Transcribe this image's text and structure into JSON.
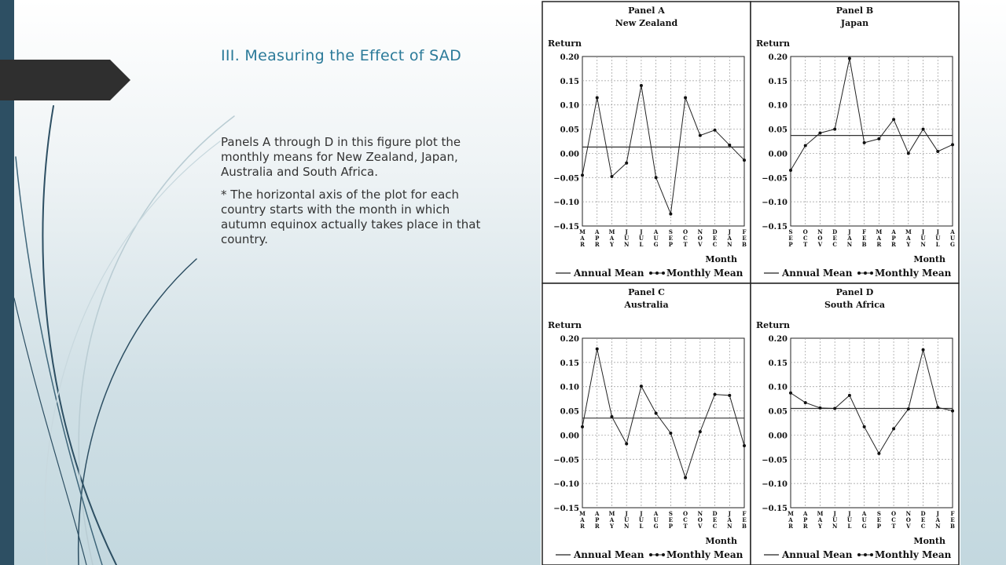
{
  "slide": {
    "title": "III. Measuring the Effect of SAD",
    "paragraphs": [
      "Panels A through D in this figure plot the monthly means for New Zealand, Japan, Australia and South Africa.",
      "* The horizontal axis of the plot for each country starts with the month in which autumn equinox actually takes place in that country."
    ]
  },
  "colors": {
    "accent_title": "#2b7a99",
    "left_bar": "#2d4f63",
    "tab": "#2f2f2f"
  },
  "chart_data": [
    {
      "type": "line",
      "panel_label": "Panel A",
      "country": "New Zealand",
      "ylabel": "Return",
      "xlabel": "Month",
      "ylim": [
        -0.15,
        0.2
      ],
      "yticks": [
        "0.20",
        "0.15",
        "0.10",
        "0.05",
        "0.00",
        "−0.05",
        "−0.10",
        "−0.15"
      ],
      "months": [
        "MAR",
        "APR",
        "MAY",
        "JUN",
        "JUL",
        "AUG",
        "SEP",
        "OCT",
        "NOV",
        "DEC",
        "JAN",
        "FEB"
      ],
      "annual_mean": 0.013,
      "values": [
        -0.045,
        0.115,
        -0.048,
        -0.02,
        0.14,
        -0.05,
        -0.125,
        0.115,
        0.037,
        0.048,
        0.017,
        -0.014
      ],
      "legend": [
        "Annual Mean",
        "Monthly Mean"
      ]
    },
    {
      "type": "line",
      "panel_label": "Panel B",
      "country": "Japan",
      "ylabel": "Return",
      "xlabel": "Month",
      "ylim": [
        -0.15,
        0.2
      ],
      "yticks": [
        "0.20",
        "0.15",
        "0.10",
        "0.05",
        "0.00",
        "−0.05",
        "−0.10",
        "−0.15"
      ],
      "months": [
        "SEP",
        "OCT",
        "NOV",
        "DEC",
        "JAN",
        "FEB",
        "MAR",
        "APR",
        "MAY",
        "JUN",
        "JUL",
        "AUG"
      ],
      "annual_mean": 0.037,
      "values": [
        -0.035,
        0.016,
        0.042,
        0.05,
        0.196,
        0.022,
        0.03,
        0.07,
        0.0,
        0.05,
        0.004,
        0.018
      ],
      "legend": [
        "Annual Mean",
        "Monthly Mean"
      ]
    },
    {
      "type": "line",
      "panel_label": "Panel C",
      "country": "Australia",
      "ylabel": "Return",
      "xlabel": "Month",
      "ylim": [
        -0.15,
        0.2
      ],
      "yticks": [
        "0.20",
        "0.15",
        "0.10",
        "0.05",
        "0.00",
        "−0.05",
        "−0.10",
        "−0.15"
      ],
      "months": [
        "MAR",
        "APR",
        "MAY",
        "JUN",
        "JUL",
        "AUG",
        "SEP",
        "OCT",
        "NOV",
        "DEC",
        "JAN",
        "FEB"
      ],
      "annual_mean": 0.035,
      "values": [
        0.017,
        0.178,
        0.038,
        -0.018,
        0.101,
        0.045,
        0.004,
        -0.088,
        0.007,
        0.084,
        0.082,
        -0.022
      ],
      "legend": [
        "Annual Mean",
        "Monthly Mean"
      ]
    },
    {
      "type": "line",
      "panel_label": "Panel D",
      "country": "South Africa",
      "ylabel": "Return",
      "xlabel": "Month",
      "ylim": [
        -0.15,
        0.2
      ],
      "yticks": [
        "0.20",
        "0.15",
        "0.10",
        "0.05",
        "0.00",
        "−0.05",
        "−0.10",
        "−0.15"
      ],
      "months": [
        "MAR",
        "APR",
        "MAY",
        "JUN",
        "JUL",
        "AUG",
        "SEP",
        "OCT",
        "NOV",
        "DEC",
        "JAN",
        "FEB"
      ],
      "annual_mean": 0.055,
      "values": [
        0.087,
        0.067,
        0.056,
        0.055,
        0.082,
        0.017,
        -0.038,
        0.013,
        0.054,
        0.176,
        0.057,
        0.05
      ],
      "legend": [
        "Annual Mean",
        "Monthly Mean"
      ]
    }
  ]
}
